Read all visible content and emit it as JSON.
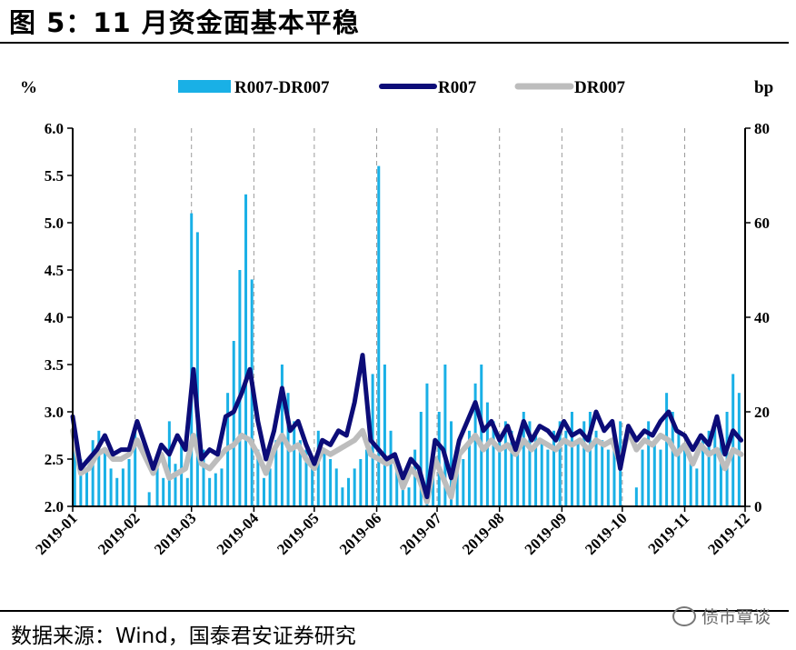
{
  "header": {
    "title": "图 5：11 月资金面基本平稳"
  },
  "footer": {
    "source": "数据来源：Wind，国泰君安证券研究",
    "watermark": "债市覃谈",
    "watermark_icon": "wechat-icon"
  },
  "chart_data": {
    "type": "bar+line",
    "left_axis": {
      "label": "%",
      "ylim": [
        2.0,
        6.0
      ],
      "ticks": [
        "2.0",
        "2.5",
        "3.0",
        "3.5",
        "4.0",
        "4.5",
        "5.0",
        "5.5",
        "6.0"
      ]
    },
    "right_axis": {
      "label": "bp",
      "ylim": [
        0,
        80
      ],
      "ticks": [
        "0",
        "20",
        "40",
        "60",
        "80"
      ]
    },
    "x_ticks": [
      "2019-01",
      "2019-02",
      "2019-03",
      "2019-04",
      "2019-05",
      "2019-06",
      "2019-07",
      "2019-08",
      "2019-09",
      "2019-10",
      "2019-11",
      "2019-12"
    ],
    "x_range": [
      "2019-01-01",
      "2019-12-01"
    ],
    "grid": "vertical dashed at month ticks",
    "legend": {
      "position": "top",
      "entries": [
        "R007-DR007",
        "R007",
        "DR007"
      ]
    },
    "colors": {
      "R007-DR007": "#19b0e6",
      "R007": "#0c0c78",
      "DR007": "#bdbdbd"
    },
    "series": [
      {
        "name": "R007-DR007",
        "kind": "bar",
        "axis": "right",
        "x": [
          "2019-01-02",
          "2019-01-05",
          "2019-01-08",
          "2019-01-11",
          "2019-01-14",
          "2019-01-17",
          "2019-01-20",
          "2019-01-23",
          "2019-01-26",
          "2019-01-29",
          "2019-02-01",
          "2019-02-08",
          "2019-02-12",
          "2019-02-15",
          "2019-02-18",
          "2019-02-21",
          "2019-02-24",
          "2019-02-27",
          "2019-03-01",
          "2019-03-04",
          "2019-03-07",
          "2019-03-10",
          "2019-03-13",
          "2019-03-16",
          "2019-03-19",
          "2019-03-22",
          "2019-03-25",
          "2019-03-28",
          "2019-03-31",
          "2019-04-03",
          "2019-04-06",
          "2019-04-09",
          "2019-04-12",
          "2019-04-15",
          "2019-04-18",
          "2019-04-21",
          "2019-04-24",
          "2019-04-27",
          "2019-04-30",
          "2019-05-03",
          "2019-05-06",
          "2019-05-09",
          "2019-05-12",
          "2019-05-15",
          "2019-05-18",
          "2019-05-21",
          "2019-05-24",
          "2019-05-27",
          "2019-05-30",
          "2019-06-02",
          "2019-06-05",
          "2019-06-08",
          "2019-06-11",
          "2019-06-14",
          "2019-06-17",
          "2019-06-20",
          "2019-06-23",
          "2019-06-26",
          "2019-06-29",
          "2019-07-02",
          "2019-07-05",
          "2019-07-08",
          "2019-07-11",
          "2019-07-14",
          "2019-07-17",
          "2019-07-20",
          "2019-07-23",
          "2019-07-26",
          "2019-07-29",
          "2019-08-01",
          "2019-08-04",
          "2019-08-07",
          "2019-08-10",
          "2019-08-13",
          "2019-08-16",
          "2019-08-19",
          "2019-08-22",
          "2019-08-25",
          "2019-08-28",
          "2019-08-31",
          "2019-09-03",
          "2019-09-06",
          "2019-09-09",
          "2019-09-12",
          "2019-09-15",
          "2019-09-18",
          "2019-09-21",
          "2019-09-24",
          "2019-09-27",
          "2019-09-30",
          "2019-10-08",
          "2019-10-11",
          "2019-10-14",
          "2019-10-17",
          "2019-10-20",
          "2019-10-23",
          "2019-10-26",
          "2019-10-29",
          "2019-11-01",
          "2019-11-04",
          "2019-11-07",
          "2019-11-10",
          "2019-11-13",
          "2019-11-16",
          "2019-11-19",
          "2019-11-22",
          "2019-11-25",
          "2019-11-28"
        ],
        "values": [
          17,
          10,
          8,
          14,
          16,
          12,
          8,
          6,
          8,
          10,
          17,
          3,
          10,
          6,
          18,
          9,
          14,
          6,
          62,
          58,
          12,
          6,
          7,
          8,
          24,
          35,
          50,
          66,
          48,
          12,
          6,
          8,
          14,
          30,
          24,
          18,
          14,
          12,
          8,
          16,
          12,
          10,
          8,
          4,
          6,
          8,
          10,
          12,
          28,
          72,
          30,
          16,
          8,
          6,
          4,
          12,
          20,
          26,
          8,
          20,
          30,
          18,
          12,
          10,
          16,
          26,
          30,
          22,
          18,
          14,
          18,
          16,
          14,
          20,
          18,
          16,
          14,
          12,
          16,
          18,
          16,
          20,
          14,
          18,
          20,
          16,
          14,
          12,
          16,
          18,
          4,
          12,
          18,
          14,
          12,
          24,
          20,
          16,
          12,
          10,
          8,
          14,
          16,
          18,
          14,
          20,
          28,
          24
        ]
      },
      {
        "name": "R007",
        "kind": "line",
        "axis": "left",
        "x": [
          "2019-01-01",
          "2019-01-05",
          "2019-01-09",
          "2019-01-13",
          "2019-01-17",
          "2019-01-21",
          "2019-01-25",
          "2019-01-29",
          "2019-02-02",
          "2019-02-10",
          "2019-02-14",
          "2019-02-18",
          "2019-02-22",
          "2019-02-26",
          "2019-03-02",
          "2019-03-06",
          "2019-03-10",
          "2019-03-14",
          "2019-03-18",
          "2019-03-22",
          "2019-03-26",
          "2019-03-30",
          "2019-04-03",
          "2019-04-07",
          "2019-04-11",
          "2019-04-15",
          "2019-04-19",
          "2019-04-23",
          "2019-04-27",
          "2019-05-01",
          "2019-05-05",
          "2019-05-09",
          "2019-05-13",
          "2019-05-17",
          "2019-05-21",
          "2019-05-25",
          "2019-05-29",
          "2019-06-02",
          "2019-06-06",
          "2019-06-10",
          "2019-06-14",
          "2019-06-18",
          "2019-06-22",
          "2019-06-26",
          "2019-06-30",
          "2019-07-04",
          "2019-07-08",
          "2019-07-12",
          "2019-07-16",
          "2019-07-20",
          "2019-07-24",
          "2019-07-28",
          "2019-08-01",
          "2019-08-05",
          "2019-08-09",
          "2019-08-13",
          "2019-08-17",
          "2019-08-21",
          "2019-08-25",
          "2019-08-29",
          "2019-09-02",
          "2019-09-06",
          "2019-09-10",
          "2019-09-14",
          "2019-09-18",
          "2019-09-22",
          "2019-09-26",
          "2019-09-30",
          "2019-10-04",
          "2019-10-08",
          "2019-10-12",
          "2019-10-16",
          "2019-10-20",
          "2019-10-24",
          "2019-10-28",
          "2019-11-01",
          "2019-11-05",
          "2019-11-09",
          "2019-11-13",
          "2019-11-17",
          "2019-11-21",
          "2019-11-25",
          "2019-11-29"
        ],
        "values": [
          2.95,
          2.4,
          2.5,
          2.6,
          2.75,
          2.55,
          2.6,
          2.6,
          2.9,
          2.4,
          2.65,
          2.55,
          2.75,
          2.6,
          3.45,
          2.5,
          2.6,
          2.55,
          2.95,
          3.0,
          3.2,
          3.45,
          2.9,
          2.5,
          2.8,
          3.25,
          2.8,
          2.9,
          2.65,
          2.45,
          2.7,
          2.65,
          2.8,
          2.75,
          3.1,
          3.6,
          2.7,
          2.6,
          2.5,
          2.55,
          2.3,
          2.5,
          2.4,
          2.1,
          2.7,
          2.6,
          2.3,
          2.7,
          2.9,
          3.1,
          2.8,
          2.9,
          2.7,
          2.85,
          2.6,
          2.9,
          2.7,
          2.85,
          2.8,
          2.7,
          2.9,
          2.75,
          2.8,
          2.7,
          3.0,
          2.8,
          2.9,
          2.4,
          2.85,
          2.7,
          2.8,
          2.75,
          2.9,
          3.0,
          2.8,
          2.75,
          2.6,
          2.75,
          2.65,
          2.95,
          2.55,
          2.8,
          2.7
        ]
      },
      {
        "name": "DR007",
        "kind": "line",
        "axis": "left",
        "x": [
          "2019-01-01",
          "2019-01-05",
          "2019-01-09",
          "2019-01-13",
          "2019-01-17",
          "2019-01-21",
          "2019-01-25",
          "2019-01-29",
          "2019-02-02",
          "2019-02-10",
          "2019-02-14",
          "2019-02-18",
          "2019-02-22",
          "2019-02-26",
          "2019-03-02",
          "2019-03-06",
          "2019-03-10",
          "2019-03-14",
          "2019-03-18",
          "2019-03-22",
          "2019-03-26",
          "2019-03-30",
          "2019-04-03",
          "2019-04-07",
          "2019-04-11",
          "2019-04-15",
          "2019-04-19",
          "2019-04-23",
          "2019-04-27",
          "2019-05-01",
          "2019-05-05",
          "2019-05-09",
          "2019-05-13",
          "2019-05-17",
          "2019-05-21",
          "2019-05-25",
          "2019-05-29",
          "2019-06-02",
          "2019-06-06",
          "2019-06-10",
          "2019-06-14",
          "2019-06-18",
          "2019-06-22",
          "2019-06-26",
          "2019-06-30",
          "2019-07-04",
          "2019-07-08",
          "2019-07-12",
          "2019-07-16",
          "2019-07-20",
          "2019-07-24",
          "2019-07-28",
          "2019-08-01",
          "2019-08-05",
          "2019-08-09",
          "2019-08-13",
          "2019-08-17",
          "2019-08-21",
          "2019-08-25",
          "2019-08-29",
          "2019-09-02",
          "2019-09-06",
          "2019-09-10",
          "2019-09-14",
          "2019-09-18",
          "2019-09-22",
          "2019-09-26",
          "2019-09-30",
          "2019-10-04",
          "2019-10-08",
          "2019-10-12",
          "2019-10-16",
          "2019-10-20",
          "2019-10-24",
          "2019-10-28",
          "2019-11-01",
          "2019-11-05",
          "2019-11-09",
          "2019-11-13",
          "2019-11-17",
          "2019-11-21",
          "2019-11-25",
          "2019-11-29"
        ],
        "values": [
          2.8,
          2.35,
          2.4,
          2.55,
          2.6,
          2.5,
          2.5,
          2.55,
          2.7,
          2.35,
          2.55,
          2.3,
          2.35,
          2.4,
          2.75,
          2.45,
          2.4,
          2.5,
          2.6,
          2.65,
          2.75,
          2.7,
          2.55,
          2.35,
          2.6,
          2.75,
          2.6,
          2.65,
          2.5,
          2.4,
          2.6,
          2.55,
          2.6,
          2.65,
          2.7,
          2.8,
          2.55,
          2.5,
          2.45,
          2.5,
          2.2,
          2.4,
          2.3,
          2.05,
          2.5,
          2.3,
          2.1,
          2.55,
          2.65,
          2.75,
          2.6,
          2.7,
          2.6,
          2.65,
          2.55,
          2.7,
          2.6,
          2.7,
          2.65,
          2.6,
          2.7,
          2.65,
          2.7,
          2.6,
          2.7,
          2.65,
          2.7,
          2.45,
          2.8,
          2.6,
          2.7,
          2.65,
          2.75,
          2.7,
          2.55,
          2.65,
          2.45,
          2.65,
          2.55,
          2.6,
          2.4,
          2.6,
          2.55
        ]
      }
    ]
  }
}
